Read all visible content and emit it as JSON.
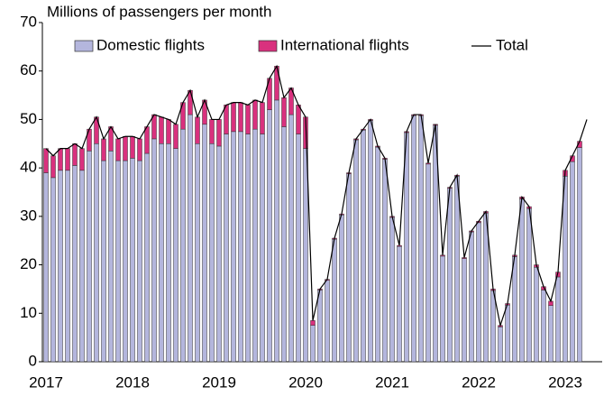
{
  "chart_data": {
    "type": "stacked-bar-line",
    "y_label": "Millions of passengers per month",
    "categories": [
      "2017",
      null,
      null,
      null,
      null,
      null,
      null,
      null,
      null,
      null,
      null,
      null,
      "2018",
      null,
      null,
      null,
      null,
      null,
      null,
      null,
      null,
      null,
      null,
      null,
      "2019",
      null,
      null,
      null,
      null,
      null,
      null,
      null,
      null,
      null,
      null,
      null,
      "2020",
      null,
      null,
      null,
      null,
      null,
      null,
      null,
      null,
      null,
      null,
      null,
      "2021",
      null,
      null,
      null,
      null,
      null,
      null,
      null,
      null,
      null,
      null,
      null,
      "2022",
      null,
      null,
      null,
      null,
      null,
      null,
      null,
      null,
      null,
      null,
      null,
      "2023",
      null,
      null,
      null
    ],
    "series": [
      {
        "name": "Domestic flights",
        "color": "#b4b6dd",
        "kind": "bar",
        "values": [
          39,
          38,
          39.5,
          39.5,
          40.5,
          39.5,
          43.5,
          45,
          41.5,
          43.5,
          41.5,
          41.5,
          42,
          41.5,
          43,
          46,
          45,
          45,
          44,
          48,
          51,
          45,
          49,
          45,
          44.5,
          47,
          47.5,
          47.5,
          47,
          48,
          47,
          52,
          54,
          48.5,
          51,
          47,
          44,
          7.5,
          14.8,
          16.8,
          25.3,
          30.3,
          38.8,
          45.8,
          47.8,
          49.8,
          44.3,
          41.8,
          29.8,
          23.8,
          47.3,
          50.8,
          50.8,
          40.8,
          48.8,
          21.8,
          35.8,
          38.3,
          21.3,
          26.8,
          28.7,
          30.7,
          14.7,
          7.2,
          11.7,
          21.7,
          33.6,
          31.6,
          19.5,
          14.8,
          11.6,
          17.5,
          38.3,
          41.3,
          44.2,
          null
        ]
      },
      {
        "name": "International flights",
        "color": "#d9317e",
        "kind": "bar",
        "values": [
          5,
          4.5,
          4.5,
          4.5,
          4.5,
          4.5,
          4.5,
          5.5,
          4.5,
          5,
          4.5,
          5,
          4.5,
          4.5,
          5.5,
          5,
          5.5,
          5,
          5,
          5.5,
          5,
          5.5,
          5,
          5,
          5.5,
          6,
          6,
          6,
          6,
          6,
          6.5,
          6.5,
          7,
          6,
          5.5,
          6,
          6.5,
          1,
          0.2,
          0.2,
          0.2,
          0.2,
          0.2,
          0.2,
          0.2,
          0.2,
          0.2,
          0.2,
          0.2,
          0.2,
          0.2,
          0.2,
          0.2,
          0.2,
          0.2,
          0.2,
          0.2,
          0.2,
          0.2,
          0.2,
          0.3,
          0.3,
          0.3,
          0.3,
          0.3,
          0.3,
          0.4,
          0.4,
          0.5,
          0.7,
          0.9,
          1,
          1.2,
          1.2,
          1.3,
          null
        ]
      },
      {
        "name": "Total",
        "color": "#000000",
        "kind": "line",
        "values": [
          44,
          42.5,
          44,
          44,
          45,
          44,
          48,
          50.5,
          46,
          48.5,
          46,
          46.5,
          46.5,
          46,
          48.5,
          51,
          50.5,
          50,
          49,
          53.5,
          56,
          50.5,
          54,
          50,
          50,
          53,
          53.5,
          53.5,
          53,
          54,
          53.5,
          58.5,
          61,
          54.5,
          56.5,
          53,
          50.5,
          8.5,
          15,
          17,
          25.5,
          30.5,
          39,
          46,
          48,
          50,
          44.5,
          42,
          30,
          24,
          47.5,
          51,
          51,
          41,
          49,
          22,
          36,
          38.5,
          21.5,
          27,
          29,
          31,
          15,
          7.5,
          12,
          22,
          34,
          32,
          20,
          15.5,
          12.5,
          18.5,
          39.5,
          42.5,
          45.5,
          50
        ]
      }
    ],
    "ylim": [
      0,
      70
    ],
    "yticks": [
      0,
      10,
      20,
      30,
      40,
      50,
      60,
      70
    ],
    "grid": false,
    "legend": "top"
  }
}
